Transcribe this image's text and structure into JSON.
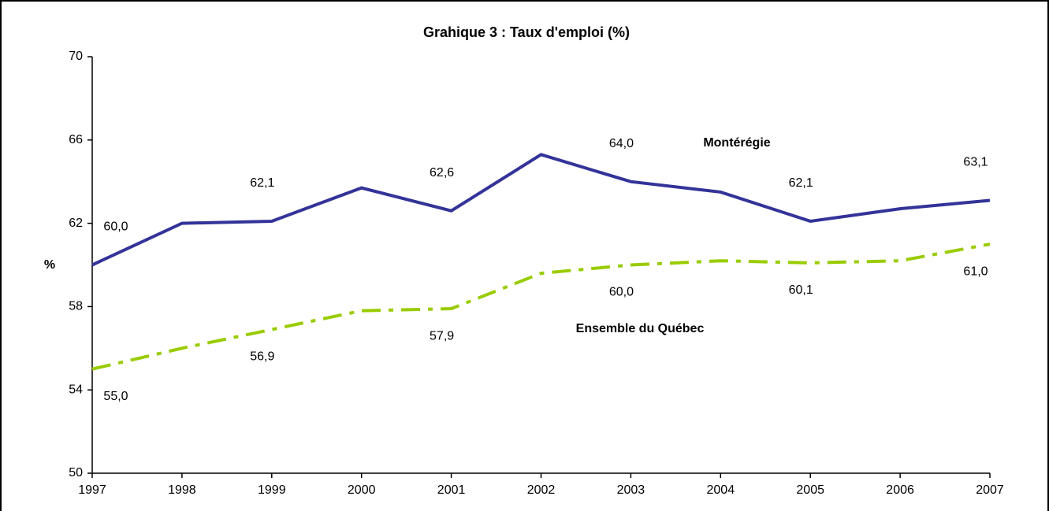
{
  "chart_data": {
    "type": "line",
    "title": "Grahique 3 : Taux d'emploi (%)",
    "y_label": "%",
    "categories": [
      "1997",
      "1998",
      "1999",
      "2000",
      "2001",
      "2002",
      "2003",
      "2004",
      "2005",
      "2006",
      "2007"
    ],
    "series": [
      {
        "name": "Montérégie",
        "color": "#333399",
        "dash": "solid",
        "values": [
          60.0,
          62.0,
          62.1,
          63.7,
          62.6,
          65.3,
          64.0,
          63.5,
          62.1,
          62.7,
          63.1
        ],
        "value_labels": [
          "60,0",
          null,
          "62,1",
          null,
          "62,6",
          null,
          "64,0",
          null,
          "62,1",
          null,
          "63,1"
        ]
      },
      {
        "name": "Ensemble du Québec",
        "color": "#99cc00",
        "dash": "dashdot",
        "values": [
          55.0,
          56.0,
          56.9,
          57.8,
          57.9,
          59.6,
          60.0,
          60.2,
          60.1,
          60.2,
          61.0
        ],
        "value_labels": [
          "55,0",
          null,
          "56,9",
          null,
          "57,9",
          null,
          "60,0",
          null,
          "60,1",
          null,
          "61,0"
        ]
      }
    ],
    "ylim": [
      50,
      70
    ],
    "yticks": [
      50,
      54,
      58,
      62,
      66,
      70
    ],
    "grid": false
  }
}
